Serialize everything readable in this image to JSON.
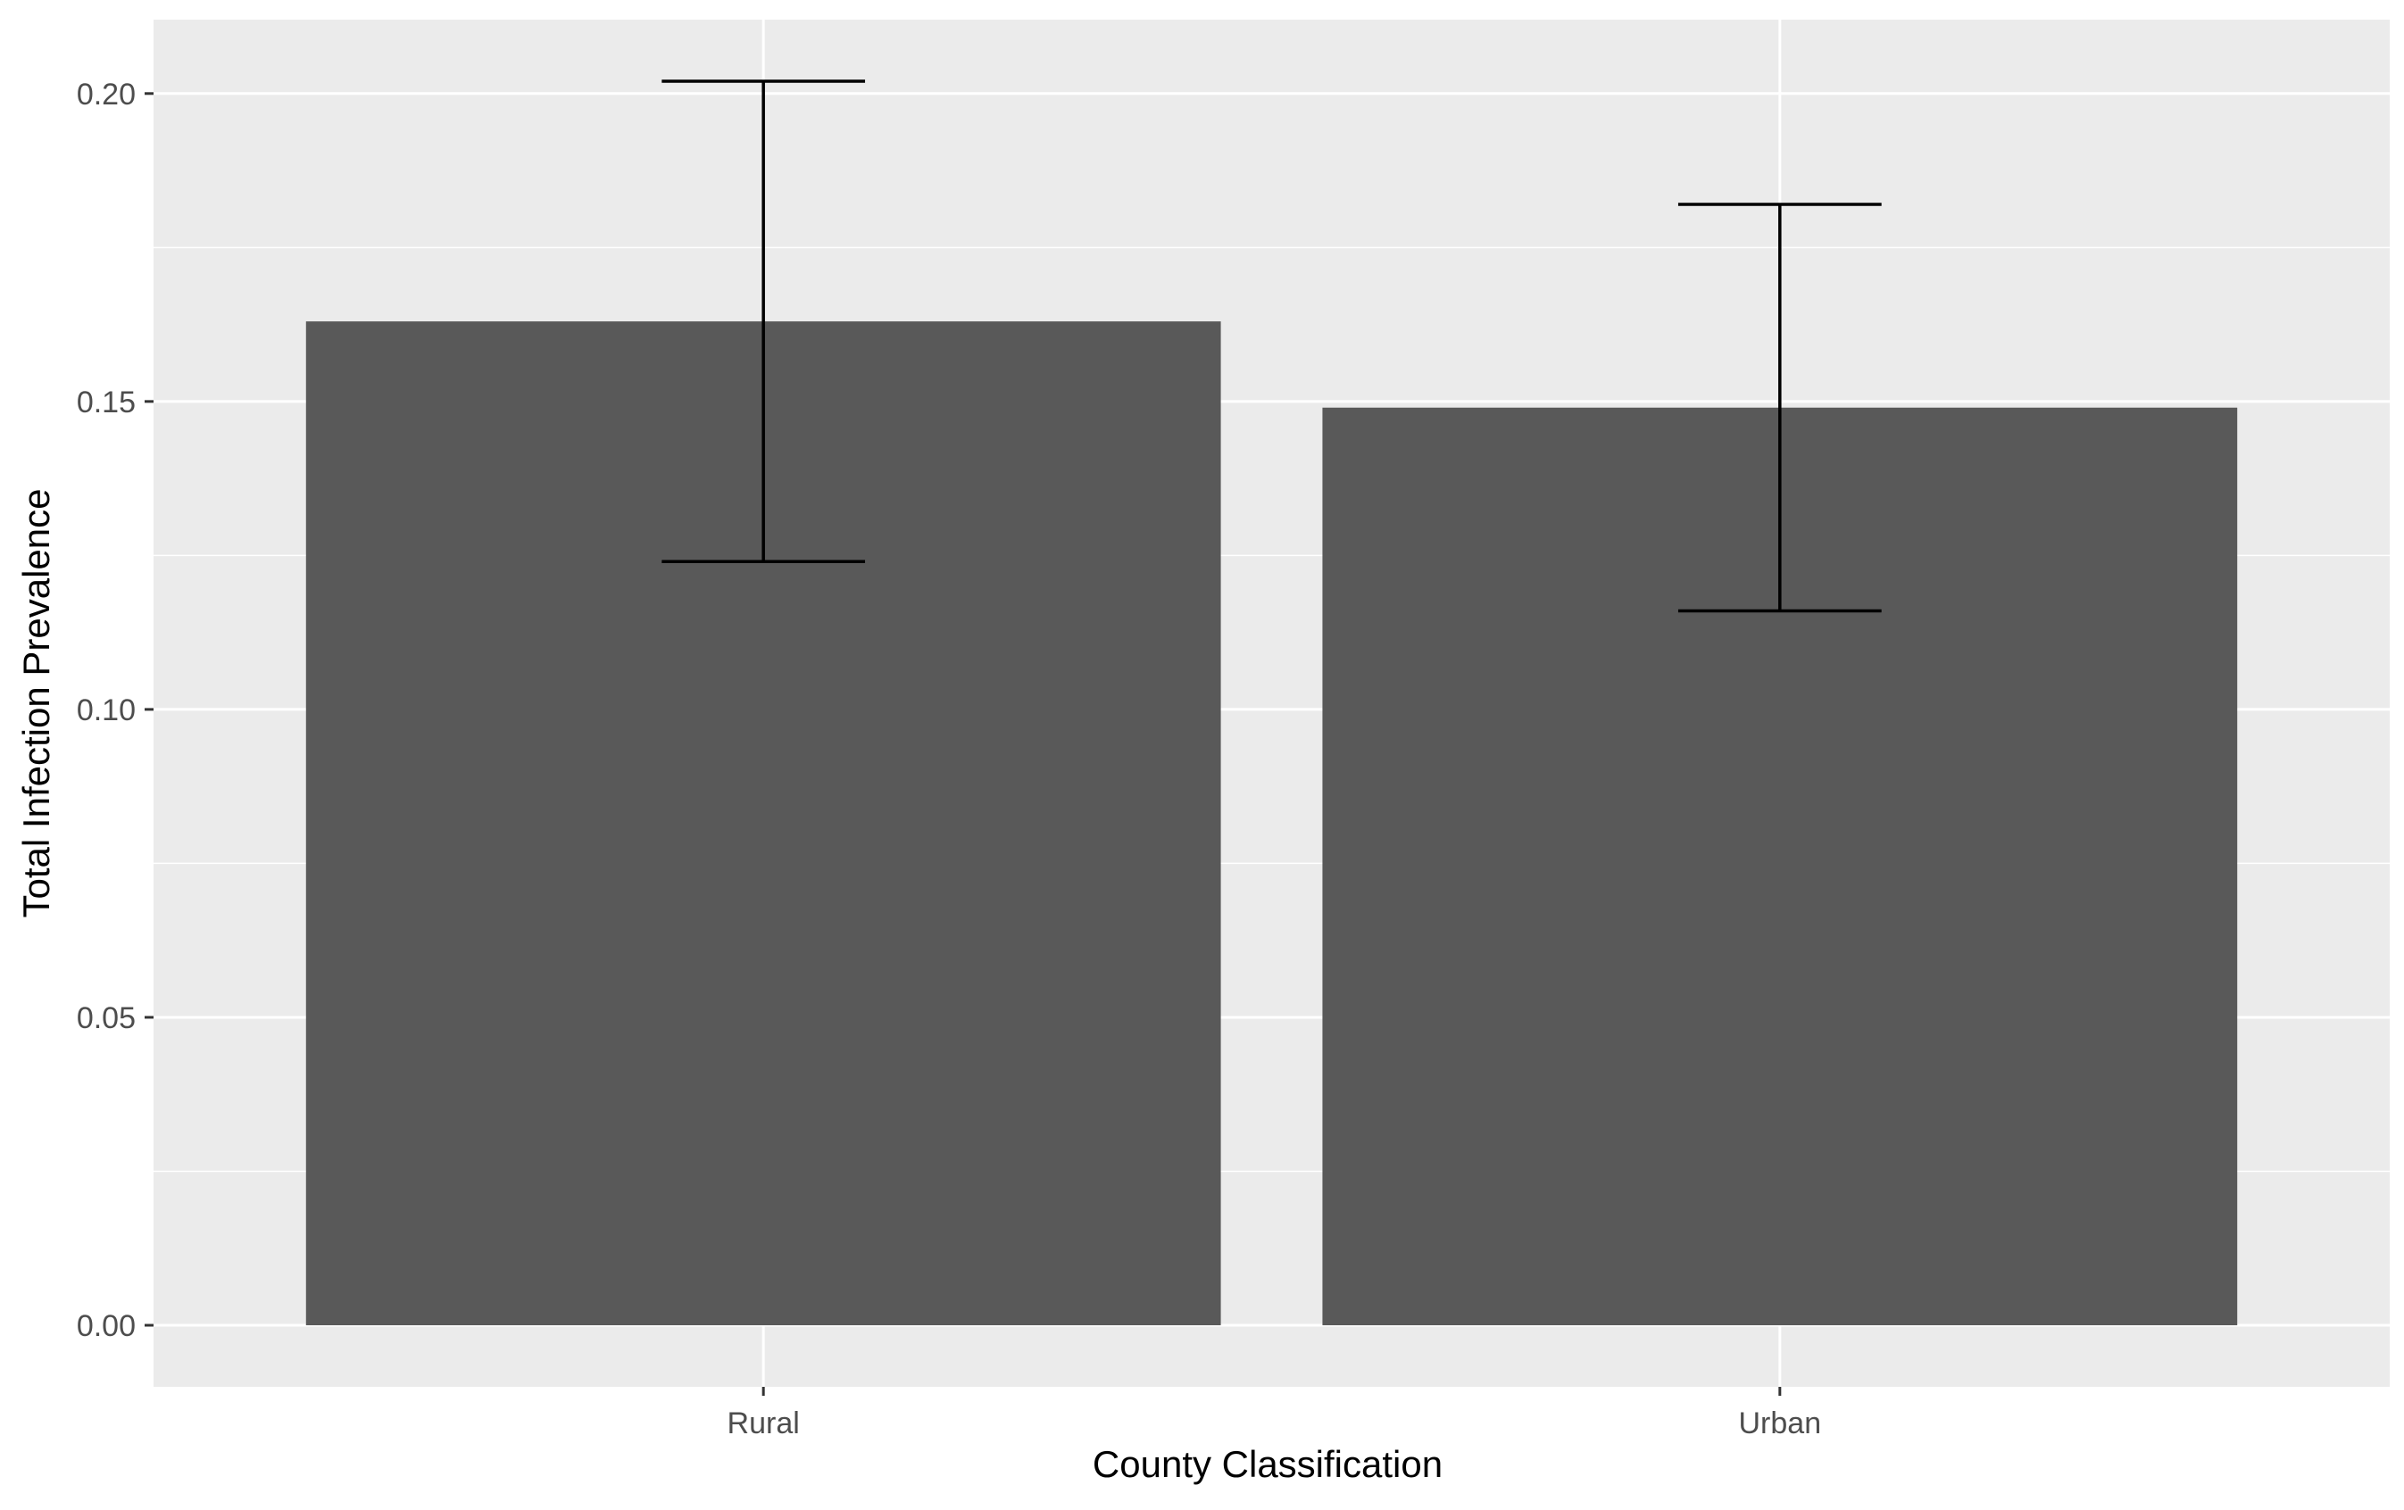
{
  "chart_data": {
    "type": "bar",
    "title": "",
    "xlabel": "County Classification",
    "ylabel": "Total Infection Prevalence",
    "categories": [
      "Rural",
      "Urban"
    ],
    "values": [
      0.163,
      0.149
    ],
    "error_low": [
      0.124,
      0.116
    ],
    "error_high": [
      0.202,
      0.182
    ],
    "ylim": [
      -0.01,
      0.212
    ],
    "yticks": [
      0.0,
      0.05,
      0.1,
      0.15,
      0.2
    ],
    "ytick_labels": [
      "0.00",
      "0.05",
      "0.10",
      "0.15",
      "0.20"
    ],
    "grid": true,
    "legend": "none",
    "colors": {
      "panel": "#ebebeb",
      "grid": "#ffffff",
      "bar": "#595959",
      "errorbar": "#000000",
      "tick": "#333333"
    }
  }
}
